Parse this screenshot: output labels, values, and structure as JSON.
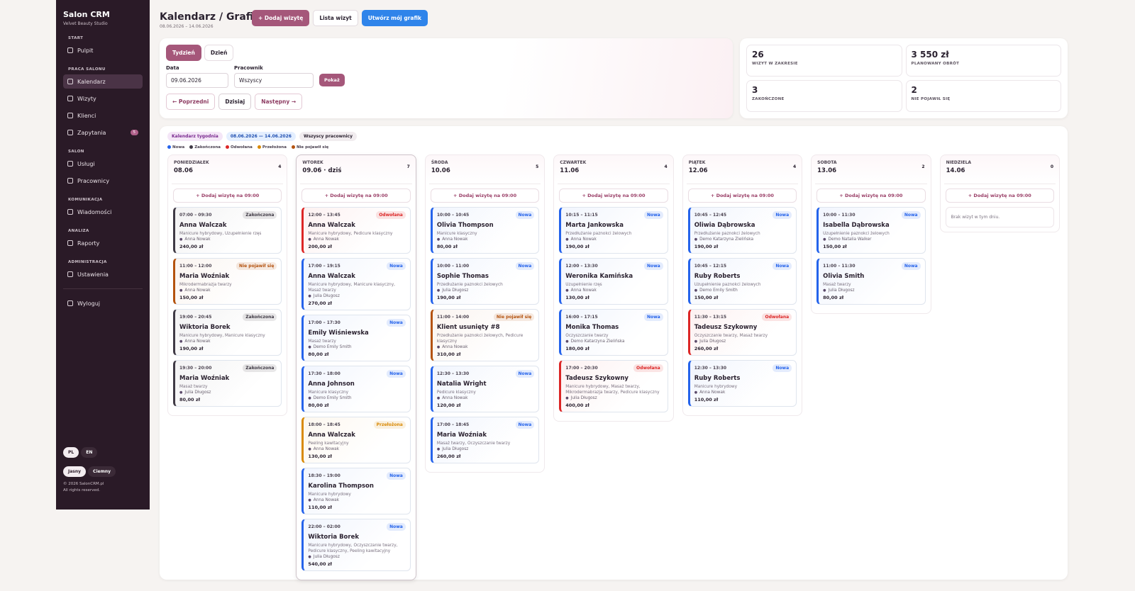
{
  "sidebar": {
    "brand": "Salon CRM",
    "subtitle": "Velvet Beauty Studio",
    "sections": [
      {
        "title": "START",
        "items": [
          {
            "label": "Pulpit"
          }
        ]
      },
      {
        "title": "PRACA SALONU",
        "items": [
          {
            "label": "Kalendarz",
            "active": true
          },
          {
            "label": "Wizyty"
          },
          {
            "label": "Klienci"
          },
          {
            "label": "Zapytania",
            "badge": 5
          }
        ]
      },
      {
        "title": "SALON",
        "items": [
          {
            "label": "Usługi"
          },
          {
            "label": "Pracownicy"
          }
        ]
      },
      {
        "title": "KOMUNIKACJA",
        "items": [
          {
            "label": "Wiadomości"
          }
        ]
      },
      {
        "title": "ANALIZA",
        "items": [
          {
            "label": "Raporty"
          }
        ]
      },
      {
        "title": "ADMINISTRACJA",
        "items": [
          {
            "label": "Ustawienia"
          }
        ]
      }
    ],
    "logout": "Wyloguj",
    "languages": [
      "PL",
      "EN"
    ],
    "themes": [
      "Jasny",
      "Ciemny"
    ],
    "footer": [
      "© 2026 SalonCRM.pl",
      "All rights reserved."
    ]
  },
  "header": {
    "title": "Kalendarz / Grafik",
    "range": "08.06.2026 – 14.06.2026",
    "buttons": [
      "+ Dodaj wizytę",
      "Lista wizyt",
      "Utwórz mój grafik"
    ]
  },
  "filters": {
    "tabs": [
      "Tydzień",
      "Dzień"
    ],
    "date_label": "Data",
    "date_value": "09.06.2026",
    "worker_label": "Pracownik",
    "worker_value": "Wszyscy",
    "show": "Pokaż",
    "nav": [
      "← Poprzedni",
      "Dzisiaj",
      "Następny →"
    ]
  },
  "stats": [
    {
      "value": 26,
      "label": "WIZYT W ZAKRESIE"
    },
    {
      "value": "3 550 zł",
      "label": "PLANOWANY OBRÓT"
    },
    {
      "value": 3,
      "label": "ZAKOŃCZONE"
    },
    {
      "value": 2,
      "label": "NIE POJAWIŁ SIĘ"
    }
  ],
  "calendar": {
    "chips": [
      "Kalendarz tygodnia",
      "08.06.2026 — 14.06.2026",
      "Wszyscy pracownicy"
    ],
    "legend": [
      {
        "label": "Nowa",
        "color": "#2563eb"
      },
      {
        "label": "Zakończona",
        "color": "#3f3a45"
      },
      {
        "label": "Odwołana",
        "color": "#dc2626"
      },
      {
        "label": "Przełożona",
        "color": "#d98a06"
      },
      {
        "label": "Nie pojawił się",
        "color": "#b4530f"
      }
    ],
    "add_label": "+ Dodaj wizytę na 09:00",
    "empty_label": "Brak wizyt w tym dniu.",
    "days": [
      {
        "name": "PONIEDZIAŁEK",
        "date": "08.06",
        "count": 4,
        "visits": [
          {
            "time": "07:00 – 09:30",
            "status": "Zakończona",
            "client": "Anna Walczak",
            "services": "Manicure hybrydowy, Uzupełnienie rzęs",
            "worker": "Anna Nowak",
            "price": "240,00 zł"
          },
          {
            "time": "11:00 – 12:00",
            "status": "Nie pojawił się",
            "client": "Maria Woźniak",
            "services": "Mikrodermabrazja twarzy",
            "worker": "Anna Nowak",
            "price": "150,00 zł"
          },
          {
            "time": "19:00 – 20:45",
            "status": "Zakończona",
            "client": "Wiktoria Borek",
            "services": "Manicure hybrydowy, Manicure klasyczny",
            "worker": "Anna Nowak",
            "price": "190,00 zł"
          },
          {
            "time": "19:30 – 20:00",
            "status": "Zakończona",
            "client": "Maria Woźniak",
            "services": "Masaż twarzy",
            "worker": "Julia Długosz",
            "price": "80,00 zł"
          }
        ]
      },
      {
        "name": "WTOREK",
        "date": "09.06 · dziś",
        "count": 7,
        "today": true,
        "visits": [
          {
            "time": "12:00 – 13:45",
            "status": "Odwołana",
            "client": "Anna Walczak",
            "services": "Manicure hybrydowy, Pedicure klasyczny",
            "worker": "Anna Nowak",
            "price": "200,00 zł"
          },
          {
            "time": "17:00 – 19:15",
            "status": "Nowa",
            "client": "Anna Walczak",
            "services": "Manicure hybrydowy, Manicure klasyczny, Masaż twarzy",
            "worker": "Julia Długosz",
            "price": "270,00 zł"
          },
          {
            "time": "17:00 – 17:30",
            "status": "Nowa",
            "client": "Emily Wiśniewska",
            "services": "Masaż twarzy",
            "worker": "Demo Emily Smith",
            "price": "80,00 zł"
          },
          {
            "time": "17:30 – 18:00",
            "status": "Nowa",
            "client": "Anna Johnson",
            "services": "Manicure klasyczny",
            "worker": "Demo Emily Smith",
            "price": "80,00 zł"
          },
          {
            "time": "18:00 – 18:45",
            "status": "Przełożona",
            "client": "Anna Walczak",
            "services": "Peeling kawitacyjny",
            "worker": "Anna Nowak",
            "price": "130,00 zł"
          },
          {
            "time": "18:30 – 19:00",
            "status": "Nowa",
            "client": "Karolina Thompson",
            "services": "Manicure hybrydowy",
            "worker": "Anna Nowak",
            "price": "110,00 zł"
          },
          {
            "time": "22:00 – 02:00",
            "status": "Nowa",
            "client": "Wiktoria Borek",
            "services": "Manicure hybrydowy, Oczyszczanie twarzy, Pedicure klasyczny, Peeling kawitacyjny",
            "worker": "Julia Długosz",
            "price": "540,00 zł"
          }
        ]
      },
      {
        "name": "ŚRODA",
        "date": "10.06",
        "count": 5,
        "visits": [
          {
            "time": "10:00 – 10:45",
            "status": "Nowa",
            "client": "Olivia Thompson",
            "services": "Manicure klasyczny",
            "worker": "Anna Nowak",
            "price": "80,00 zł"
          },
          {
            "time": "10:00 – 11:00",
            "status": "Nowa",
            "client": "Sophie Thomas",
            "services": "Przedłużanie paznokci żelowych",
            "worker": "Julia Długosz",
            "price": "190,00 zł"
          },
          {
            "time": "11:00 – 14:00",
            "status": "Nie pojawił się",
            "client": "Klient usunięty #8",
            "services": "Przedłużanie paznokci żelowych, Pedicure klasyczny",
            "worker": "Anna Nowak",
            "price": "310,00 zł"
          },
          {
            "time": "12:30 – 13:30",
            "status": "Nowa",
            "client": "Natalia Wright",
            "services": "Pedicure klasyczny",
            "worker": "Anna Nowak",
            "price": "120,00 zł"
          },
          {
            "time": "17:00 – 18:45",
            "status": "Nowa",
            "client": "Maria Woźniak",
            "services": "Masaż twarzy, Oczyszczanie twarzy",
            "worker": "Julia Długosz",
            "price": "260,00 zł"
          }
        ]
      },
      {
        "name": "CZWARTEK",
        "date": "11.06",
        "count": 4,
        "visits": [
          {
            "time": "10:15 – 11:15",
            "status": "Nowa",
            "client": "Marta Jankowska",
            "services": "Przedłużanie paznokci żelowych",
            "worker": "Anna Nowak",
            "price": "190,00 zł"
          },
          {
            "time": "12:00 – 13:30",
            "status": "Nowa",
            "client": "Weronika Kamińska",
            "services": "Uzupełnienie rzęs",
            "worker": "Anna Nowak",
            "price": "130,00 zł"
          },
          {
            "time": "16:00 – 17:15",
            "status": "Nowa",
            "client": "Monika Thomas",
            "services": "Oczyszczanie twarzy",
            "worker": "Demo Katarzyna Zielińska",
            "price": "180,00 zł"
          },
          {
            "time": "17:00 – 20:30",
            "status": "Odwołana",
            "client": "Tadeusz Szykowny",
            "services": "Manicure hybrydowy, Masaż twarzy, Mikrodermabrazja twarzy, Pedicure klasyczny",
            "worker": "Julia Długosz",
            "price": "400,00 zł"
          }
        ]
      },
      {
        "name": "PIĄTEK",
        "date": "12.06",
        "count": 4,
        "visits": [
          {
            "time": "10:45 – 12:45",
            "status": "Nowa",
            "client": "Oliwia Dąbrowska",
            "services": "Przedłużanie paznokci żelowych",
            "worker": "Demo Katarzyna Zielińska",
            "price": "190,00 zł"
          },
          {
            "time": "10:45 – 12:15",
            "status": "Nowa",
            "client": "Ruby Roberts",
            "services": "Uzupełnienie paznokci żelowych",
            "worker": "Demo Emily Smith",
            "price": "150,00 zł"
          },
          {
            "time": "11:30 – 13:15",
            "status": "Odwołana",
            "client": "Tadeusz Szykowny",
            "services": "Oczyszczanie twarzy, Masaż twarzy",
            "worker": "Julia Długosz",
            "price": "260,00 zł"
          },
          {
            "time": "12:30 – 13:30",
            "status": "Nowa",
            "client": "Ruby Roberts",
            "services": "Manicure hybrydowy",
            "worker": "Anna Nowak",
            "price": "110,00 zł"
          }
        ]
      },
      {
        "name": "SOBOTA",
        "date": "13.06",
        "count": 2,
        "visits": [
          {
            "time": "10:00 – 11:30",
            "status": "Nowa",
            "client": "Isabella Dąbrowska",
            "services": "Uzupełnienie paznokci żelowych",
            "worker": "Demo Natalia Walker",
            "price": "150,00 zł"
          },
          {
            "time": "11:00 – 11:30",
            "status": "Nowa",
            "client": "Olivia Smith",
            "services": "Masaż twarzy",
            "worker": "Julia Długosz",
            "price": "80,00 zł"
          }
        ]
      },
      {
        "name": "NIEDZIELA",
        "date": "14.06",
        "count": 0,
        "visits": []
      }
    ]
  }
}
